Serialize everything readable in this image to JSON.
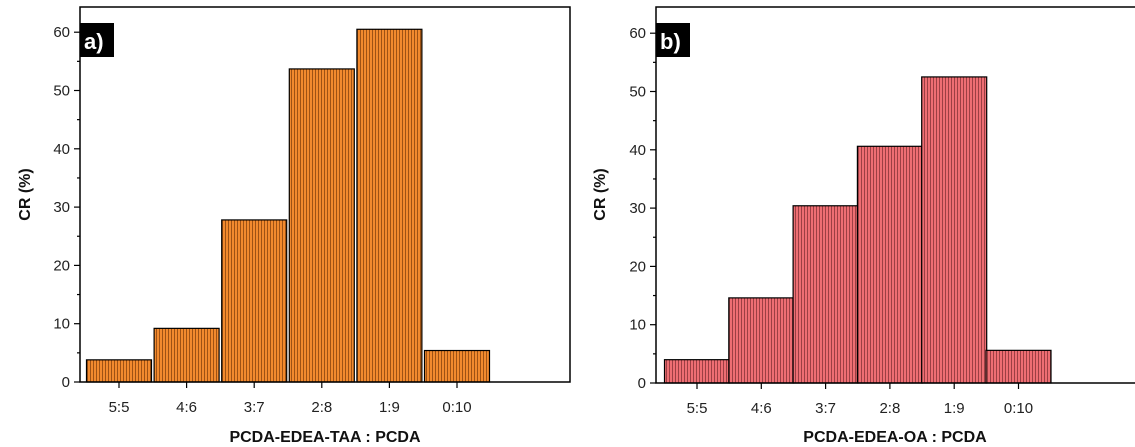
{
  "chart_data": [
    {
      "type": "bar",
      "panel_label": "a)",
      "categories": [
        "5:5",
        "4:6",
        "3:7",
        "2:8",
        "1:9",
        "0:10"
      ],
      "values": [
        3.8,
        9.2,
        27.8,
        53.7,
        60.5,
        5.4
      ],
      "xlabel": "PCDA-EDEA-TAA : PCDA",
      "ylabel": "CR (%)",
      "ylim": [
        0,
        65
      ],
      "yticks": [
        "0",
        "10",
        "20",
        "30",
        "40",
        "50",
        "60"
      ],
      "bar_color": "#F28A2E",
      "hatch": "vertical-lines",
      "grid": false
    },
    {
      "type": "bar",
      "panel_label": "b)",
      "categories": [
        "5:5",
        "4:6",
        "3:7",
        "2:8",
        "1:9",
        "0:10"
      ],
      "values": [
        4.0,
        14.6,
        30.4,
        40.6,
        52.5,
        5.6
      ],
      "xlabel": "PCDA-EDEA-OA : PCDA",
      "ylabel": "CR (%)",
      "ylim": [
        0,
        65
      ],
      "yticks": [
        "0",
        "10",
        "20",
        "30",
        "40",
        "50",
        "60"
      ],
      "bar_color": "#EE6E73",
      "hatch": "vertical-lines",
      "grid": false
    }
  ]
}
